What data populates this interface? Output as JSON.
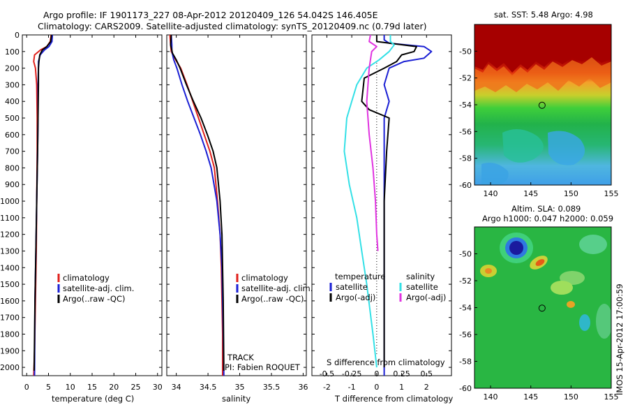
{
  "header": {
    "line1": "Argo profile: IF 1901173_227 08-Apr-2012 20120409_126 54.042S 146.405E",
    "line2": "Climatology: CARS2009. Satellite-adjusted climatology: synTS_20120409.nc (0.79d later)"
  },
  "colors": {
    "red": "#e0201b",
    "blue": "#1a1fd4",
    "black": "#000000",
    "cyan": "#33e0e6",
    "magenta": "#e033e0"
  },
  "chart_data": [
    {
      "type": "line",
      "id": "temperature",
      "xlabel": "temperature (deg C)",
      "xlim": [
        -1,
        31
      ],
      "xticks": [
        0,
        5,
        10,
        15,
        20,
        25,
        30
      ],
      "ylim": [
        2050,
        0
      ],
      "yticks": [
        0,
        100,
        200,
        300,
        400,
        500,
        600,
        700,
        800,
        900,
        1000,
        1100,
        1200,
        1300,
        1400,
        1500,
        1600,
        1700,
        1800,
        1900,
        2000
      ],
      "legend": [
        {
          "label": "climatology",
          "color": "red"
        },
        {
          "label": "satellite-adj. clim.",
          "color": "blue"
        },
        {
          "label": "Argo(..raw -QC)",
          "color": "black"
        }
      ],
      "series": [
        {
          "name": "climatology",
          "color": "red",
          "x": [
            5.6,
            5.4,
            4.6,
            3.2,
            1.8,
            1.6,
            2.0,
            2.3,
            2.4,
            2.4,
            2.3,
            2.2,
            2.0,
            1.8,
            1.6
          ],
          "y": [
            0,
            40,
            70,
            90,
            120,
            160,
            200,
            300,
            500,
            700,
            1000,
            1300,
            1600,
            1900,
            2050
          ]
        },
        {
          "name": "satellite-adj. clim.",
          "color": "blue",
          "x": [
            5.9,
            5.8,
            5.1,
            4.1,
            3.1,
            2.7,
            2.7,
            2.6,
            2.6,
            2.5,
            2.3,
            2.1,
            1.9,
            1.8
          ],
          "y": [
            0,
            40,
            70,
            90,
            120,
            160,
            200,
            300,
            500,
            700,
            1000,
            1300,
            1600,
            2050
          ]
        },
        {
          "name": "Argo(..raw -QC)",
          "color": "black",
          "x": [
            5.7,
            5.5,
            4.6,
            3.6,
            3.0,
            2.8,
            2.7,
            2.7,
            2.6,
            2.5,
            2.3,
            2.1,
            1.9,
            1.7
          ],
          "y": [
            0,
            40,
            70,
            90,
            120,
            160,
            200,
            300,
            500,
            700,
            1000,
            1300,
            1600,
            2020
          ]
        }
      ]
    },
    {
      "type": "line",
      "id": "salinity",
      "xlabel": "salinity",
      "xlim": [
        33.85,
        36.05
      ],
      "xticks": [
        34,
        34.5,
        35,
        35.5,
        36
      ],
      "ylim": [
        2050,
        0
      ],
      "legend": [
        {
          "label": "climatology",
          "color": "red"
        },
        {
          "label": "satellite-adj. clim.",
          "color": "blue"
        },
        {
          "label": "Argo(..raw -QC)",
          "color": "black"
        }
      ],
      "annotation": [
        "TRACK",
        "PI: Fabien ROQUET"
      ],
      "series": [
        {
          "name": "climatology",
          "color": "red",
          "x": [
            33.9,
            33.91,
            33.92,
            33.99,
            34.07,
            34.17,
            34.26,
            34.35,
            34.44,
            34.53,
            34.6,
            34.65,
            34.69,
            34.71,
            34.72,
            34.73,
            34.73
          ],
          "y": [
            0,
            60,
            100,
            150,
            200,
            300,
            400,
            500,
            600,
            700,
            800,
            1000,
            1200,
            1400,
            1600,
            1800,
            2050
          ]
        },
        {
          "name": "satellite-adj. clim.",
          "color": "blue",
          "x": [
            33.92,
            33.93,
            33.93,
            33.96,
            34.01,
            34.09,
            34.18,
            34.28,
            34.38,
            34.47,
            34.55,
            34.64,
            34.69,
            34.72,
            34.73,
            34.74,
            34.75
          ],
          "y": [
            0,
            60,
            100,
            150,
            200,
            300,
            400,
            500,
            600,
            700,
            800,
            1000,
            1200,
            1400,
            1600,
            1800,
            2050
          ]
        },
        {
          "name": "Argo(..raw -QC)",
          "color": "black",
          "x": [
            33.92,
            33.91,
            33.94,
            34.0,
            34.06,
            34.16,
            34.27,
            34.39,
            34.49,
            34.58,
            34.64,
            34.69,
            34.72,
            34.73,
            34.74,
            34.75
          ],
          "y": [
            0,
            60,
            110,
            150,
            200,
            300,
            400,
            500,
            600,
            700,
            800,
            1000,
            1200,
            1400,
            1600,
            2020
          ]
        }
      ]
    },
    {
      "type": "line",
      "id": "difference",
      "xlabel": "T difference from climatology",
      "xlabel2": "S difference from climatology",
      "xlim": [
        -2.6,
        3.0
      ],
      "xticks": [
        -2,
        -1,
        0,
        1,
        2
      ],
      "xticks2": [
        -0.5,
        -0.25,
        0,
        0.25,
        0.5
      ],
      "xticklabels2": [
        "-0.5",
        "-0.25",
        "0",
        "0.25",
        "0.5"
      ],
      "ylim": [
        2050,
        0
      ],
      "legend_t": {
        "title": "temperature",
        "items": [
          {
            "label": "satellite",
            "color": "blue"
          },
          {
            "label": "Argo(-adj)",
            "color": "black"
          }
        ]
      },
      "legend_s": {
        "title": "salinity",
        "items": [
          {
            "label": "satellite",
            "color": "cyan"
          },
          {
            "label": "Argo(-adj)",
            "color": "magenta"
          }
        ]
      },
      "series": [
        {
          "name": "T satellite",
          "color": "blue",
          "x": [
            0.3,
            0.3,
            0.5,
            1.9,
            2.2,
            1.9,
            1.1,
            0.5,
            0.3,
            0.5,
            0.3,
            0.3,
            0.3,
            0.3,
            0.3,
            0.3
          ],
          "y": [
            0,
            30,
            50,
            70,
            100,
            140,
            160,
            200,
            300,
            400,
            500,
            700,
            1000,
            1400,
            1800,
            2050
          ]
        },
        {
          "name": "T Argo(-adj)",
          "color": "black",
          "x": [
            0.0,
            0.0,
            1.6,
            1.5,
            1.0,
            0.8,
            0.3,
            -0.5,
            -0.6,
            -0.3,
            0.5,
            0.4,
            0.3,
            0.3,
            0.3
          ],
          "y": [
            0,
            40,
            70,
            100,
            120,
            160,
            200,
            260,
            400,
            450,
            500,
            700,
            1000,
            1500,
            2000
          ]
        },
        {
          "name": "S satellite",
          "color": "cyan",
          "x": [
            0.55,
            0.55,
            0.7,
            0.5,
            0.1,
            -0.4,
            -0.8,
            -1.0,
            -1.2,
            -1.3,
            -1.1,
            -0.8,
            -0.6,
            -0.4,
            -0.15,
            0.0
          ],
          "y": [
            0,
            40,
            60,
            100,
            150,
            200,
            300,
            400,
            500,
            700,
            900,
            1100,
            1300,
            1500,
            1800,
            2000
          ]
        },
        {
          "name": "S Argo(-adj)",
          "color": "magenta",
          "x": [
            -0.25,
            -0.3,
            0.0,
            -0.2,
            -0.3,
            -0.4,
            -0.3,
            -0.15,
            -0.05,
            0.0,
            0.05
          ],
          "y": [
            0,
            40,
            70,
            100,
            200,
            400,
            600,
            800,
            1000,
            1200,
            1300
          ]
        }
      ]
    }
  ],
  "maps": [
    {
      "id": "sst-map",
      "title": "sat. SST: 5.48  Argo: 4.98",
      "xlim": [
        138,
        155
      ],
      "xticks": [
        140,
        145,
        150,
        155
      ],
      "ylim": [
        -60,
        -48
      ],
      "yticks": [
        -50,
        -52,
        -54,
        -56,
        -58,
        -60
      ],
      "marker": {
        "lon": 146.4,
        "lat": -54.04
      }
    },
    {
      "id": "sla-map",
      "title1": "Altim. SLA: 0.089",
      "title2": "Argo h1000: 0.047 h2000: 0.059",
      "xlim": [
        138,
        155
      ],
      "xticks": [
        140,
        145,
        150,
        155
      ],
      "ylim": [
        -60,
        -48
      ],
      "yticks": [
        -50,
        -52,
        -54,
        -56,
        -58,
        -60
      ],
      "marker": {
        "lon": 146.4,
        "lat": -54.04
      }
    }
  ],
  "side_stamp": "IMOS 15-Apr-2012 17:00:59"
}
